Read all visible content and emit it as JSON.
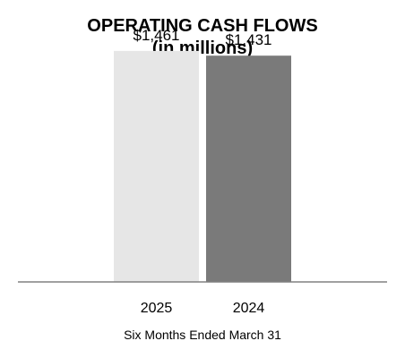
{
  "chart_data": {
    "type": "bar",
    "title": "OPERATING CASH FLOWS",
    "subtitle": "(in millions)",
    "categories": [
      "2025",
      "2024"
    ],
    "values": [
      1461,
      1431
    ],
    "data_labels": [
      "$1,461",
      "$1,431"
    ],
    "colors": [
      "#e6e6e6",
      "#7a7a7a"
    ],
    "xlabel": "Six Months Ended March 31",
    "ylabel": "",
    "ylim": [
      0,
      1500
    ],
    "grid": false,
    "legend": "none"
  }
}
